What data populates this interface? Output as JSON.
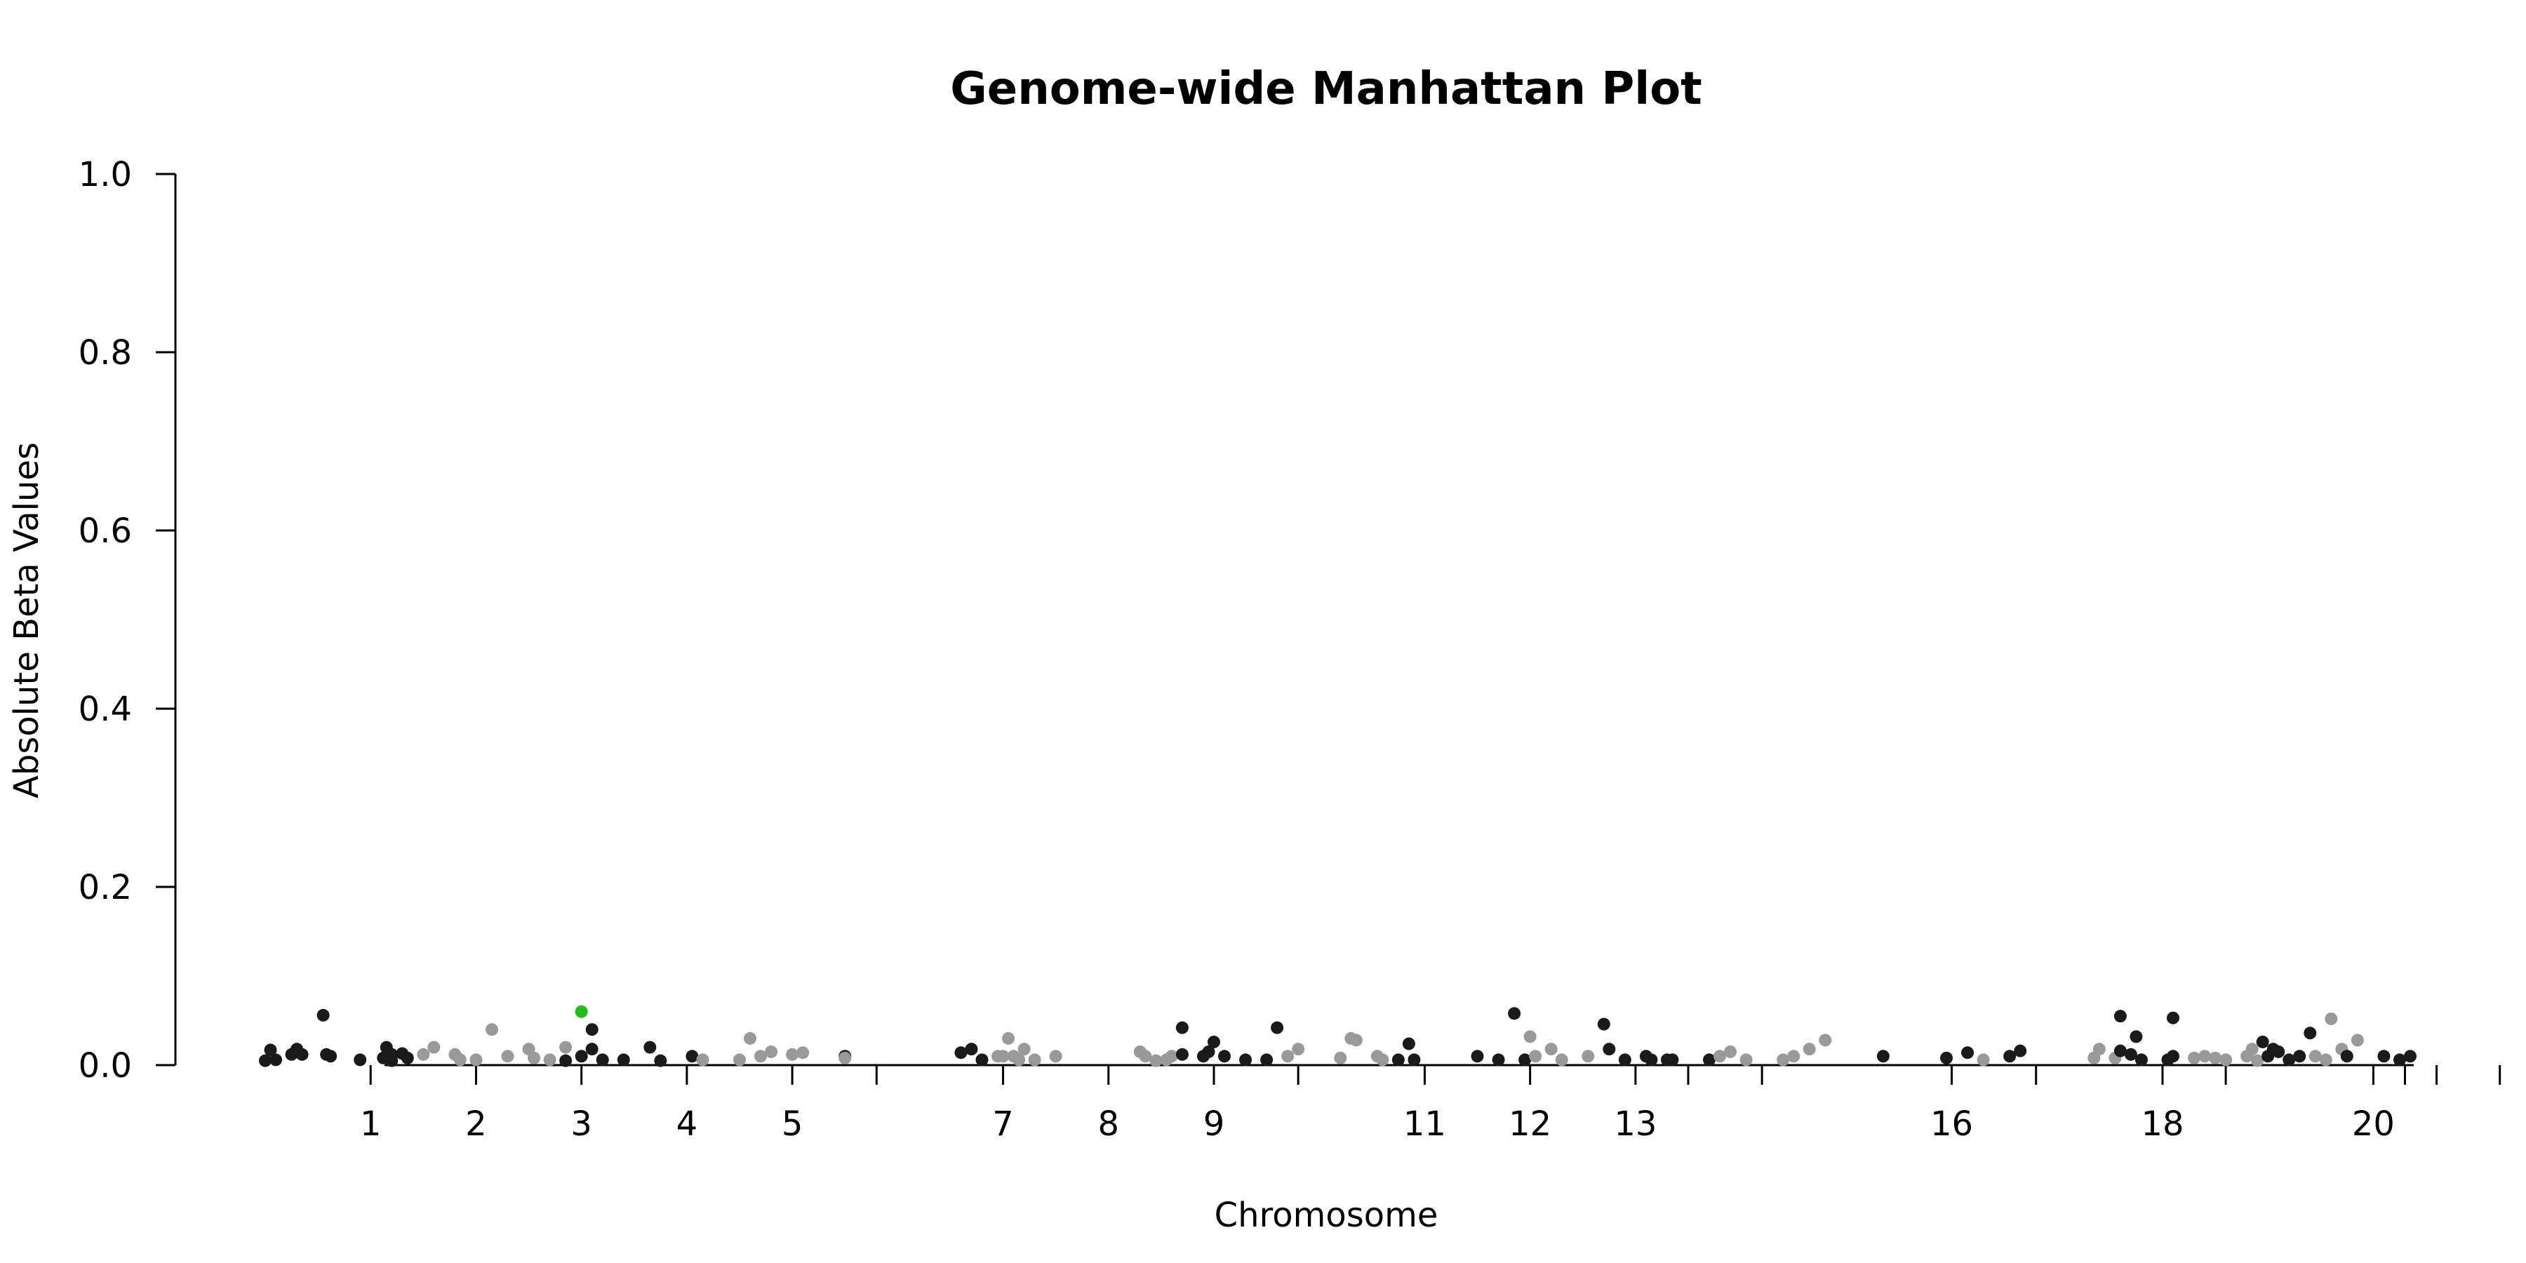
{
  "chart_data": {
    "type": "scatter",
    "title": "Genome-wide Manhattan Plot",
    "xlabel": "Chromosome",
    "ylabel": "Absolute Beta Values",
    "ylim": [
      0,
      1
    ],
    "yticks": [
      "0.0",
      "0.2",
      "0.4",
      "0.6",
      "0.8",
      "1.0"
    ],
    "xticks": [
      {
        "label": "1",
        "x": 1.0
      },
      {
        "label": "2",
        "x": 2.0
      },
      {
        "label": "3",
        "x": 3.0
      },
      {
        "label": "4",
        "x": 4.0
      },
      {
        "label": "5",
        "x": 5.0
      },
      {
        "label": "",
        "x": 5.8
      },
      {
        "label": "7",
        "x": 7.0
      },
      {
        "label": "8",
        "x": 8.0
      },
      {
        "label": "9",
        "x": 9.0
      },
      {
        "label": "",
        "x": 9.8
      },
      {
        "label": "11",
        "x": 11.0
      },
      {
        "label": "12",
        "x": 12.0
      },
      {
        "label": "13",
        "x": 13.0
      },
      {
        "label": "",
        "x": 13.5
      },
      {
        "label": "",
        "x": 14.2
      },
      {
        "label": "16",
        "x": 16.0
      },
      {
        "label": "",
        "x": 16.8
      },
      {
        "label": "18",
        "x": 18.0
      },
      {
        "label": "",
        "x": 18.6
      },
      {
        "label": "20",
        "x": 20.0
      },
      {
        "label": "",
        "x": 20.3
      },
      {
        "label": "",
        "x": 20.6
      },
      {
        "label": "",
        "x": 21.2
      }
    ],
    "colors": {
      "dark": "#1a1a1a",
      "gray": "#999999",
      "highlight": "#22bb22"
    },
    "points": [
      [
        0.0,
        0.005,
        "dark"
      ],
      [
        0.05,
        0.017,
        "dark"
      ],
      [
        0.1,
        0.006,
        "dark"
      ],
      [
        0.25,
        0.012,
        "dark"
      ],
      [
        0.3,
        0.018,
        "dark"
      ],
      [
        0.35,
        0.012,
        "dark"
      ],
      [
        0.55,
        0.056,
        "dark"
      ],
      [
        0.58,
        0.012,
        "dark"
      ],
      [
        0.62,
        0.01,
        "dark"
      ],
      [
        0.9,
        0.006,
        "dark"
      ],
      [
        1.15,
        0.02,
        "dark"
      ],
      [
        1.12,
        0.008,
        "dark"
      ],
      [
        1.2,
        0.012,
        "dark"
      ],
      [
        1.3,
        0.013,
        "dark"
      ],
      [
        1.35,
        0.008,
        "dark"
      ],
      [
        1.2,
        0.005,
        "dark"
      ],
      [
        1.5,
        0.012,
        "gray"
      ],
      [
        1.6,
        0.02,
        "gray"
      ],
      [
        1.8,
        0.012,
        "gray"
      ],
      [
        1.85,
        0.006,
        "gray"
      ],
      [
        2.0,
        0.006,
        "gray"
      ],
      [
        2.15,
        0.04,
        "gray"
      ],
      [
        2.3,
        0.01,
        "gray"
      ],
      [
        2.5,
        0.018,
        "gray"
      ],
      [
        2.55,
        0.008,
        "gray"
      ],
      [
        2.7,
        0.006,
        "gray"
      ],
      [
        2.85,
        0.02,
        "gray"
      ],
      [
        2.85,
        0.005,
        "dark"
      ],
      [
        3.0,
        0.01,
        "dark"
      ],
      [
        3.1,
        0.04,
        "dark"
      ],
      [
        3.1,
        0.018,
        "dark"
      ],
      [
        3.2,
        0.006,
        "dark"
      ],
      [
        3.4,
        0.006,
        "dark"
      ],
      [
        3.65,
        0.02,
        "dark"
      ],
      [
        3.75,
        0.005,
        "dark"
      ],
      [
        4.05,
        0.01,
        "dark"
      ],
      [
        4.15,
        0.006,
        "gray"
      ],
      [
        4.5,
        0.006,
        "gray"
      ],
      [
        4.6,
        0.03,
        "gray"
      ],
      [
        4.7,
        0.01,
        "gray"
      ],
      [
        4.8,
        0.015,
        "gray"
      ],
      [
        5.0,
        0.012,
        "gray"
      ],
      [
        5.1,
        0.014,
        "gray"
      ],
      [
        5.5,
        0.01,
        "dark"
      ],
      [
        5.5,
        0.008,
        "gray"
      ],
      [
        6.6,
        0.014,
        "dark"
      ],
      [
        6.7,
        0.018,
        "dark"
      ],
      [
        6.8,
        0.006,
        "dark"
      ],
      [
        6.95,
        0.01,
        "gray"
      ],
      [
        7.0,
        0.01,
        "gray"
      ],
      [
        7.05,
        0.03,
        "gray"
      ],
      [
        7.1,
        0.01,
        "gray"
      ],
      [
        7.2,
        0.018,
        "gray"
      ],
      [
        7.3,
        0.006,
        "gray"
      ],
      [
        7.5,
        0.01,
        "gray"
      ],
      [
        7.15,
        0.006,
        "gray"
      ],
      [
        8.3,
        0.015,
        "gray"
      ],
      [
        8.35,
        0.01,
        "gray"
      ],
      [
        8.45,
        0.005,
        "gray"
      ],
      [
        8.55,
        0.006,
        "gray"
      ],
      [
        8.6,
        0.01,
        "gray"
      ],
      [
        8.7,
        0.012,
        "dark"
      ],
      [
        8.7,
        0.042,
        "dark"
      ],
      [
        8.9,
        0.01,
        "dark"
      ],
      [
        8.95,
        0.015,
        "dark"
      ],
      [
        9.0,
        0.026,
        "dark"
      ],
      [
        9.1,
        0.01,
        "dark"
      ],
      [
        9.3,
        0.006,
        "dark"
      ],
      [
        9.5,
        0.006,
        "dark"
      ],
      [
        9.6,
        0.042,
        "dark"
      ],
      [
        9.7,
        0.01,
        "gray"
      ],
      [
        9.8,
        0.018,
        "gray"
      ],
      [
        10.2,
        0.008,
        "gray"
      ],
      [
        10.3,
        0.03,
        "gray"
      ],
      [
        10.35,
        0.028,
        "gray"
      ],
      [
        10.55,
        0.01,
        "gray"
      ],
      [
        10.6,
        0.006,
        "gray"
      ],
      [
        10.75,
        0.006,
        "dark"
      ],
      [
        10.85,
        0.024,
        "dark"
      ],
      [
        10.9,
        0.006,
        "dark"
      ],
      [
        11.5,
        0.01,
        "dark"
      ],
      [
        11.7,
        0.006,
        "dark"
      ],
      [
        11.85,
        0.058,
        "dark"
      ],
      [
        11.95,
        0.006,
        "dark"
      ],
      [
        12.0,
        0.032,
        "gray"
      ],
      [
        12.05,
        0.01,
        "gray"
      ],
      [
        12.2,
        0.018,
        "gray"
      ],
      [
        12.3,
        0.006,
        "gray"
      ],
      [
        12.55,
        0.01,
        "gray"
      ],
      [
        12.7,
        0.046,
        "dark"
      ],
      [
        12.75,
        0.018,
        "dark"
      ],
      [
        12.9,
        0.006,
        "dark"
      ],
      [
        13.1,
        0.01,
        "dark"
      ],
      [
        13.15,
        0.006,
        "dark"
      ],
      [
        13.3,
        0.006,
        "dark"
      ],
      [
        13.35,
        0.006,
        "dark"
      ],
      [
        13.7,
        0.006,
        "dark"
      ],
      [
        13.8,
        0.01,
        "gray"
      ],
      [
        13.9,
        0.015,
        "gray"
      ],
      [
        14.05,
        0.006,
        "gray"
      ],
      [
        14.4,
        0.006,
        "gray"
      ],
      [
        14.5,
        0.01,
        "gray"
      ],
      [
        14.65,
        0.018,
        "gray"
      ],
      [
        14.8,
        0.028,
        "gray"
      ],
      [
        15.35,
        0.01,
        "dark"
      ],
      [
        15.95,
        0.008,
        "dark"
      ],
      [
        16.15,
        0.014,
        "dark"
      ],
      [
        16.3,
        0.006,
        "gray"
      ],
      [
        16.55,
        0.01,
        "dark"
      ],
      [
        16.65,
        0.016,
        "dark"
      ],
      [
        17.35,
        0.008,
        "gray"
      ],
      [
        17.4,
        0.018,
        "gray"
      ],
      [
        17.55,
        0.008,
        "gray"
      ],
      [
        17.6,
        0.055,
        "dark"
      ],
      [
        17.6,
        0.016,
        "dark"
      ],
      [
        17.7,
        0.012,
        "dark"
      ],
      [
        17.75,
        0.032,
        "dark"
      ],
      [
        17.8,
        0.006,
        "dark"
      ],
      [
        18.1,
        0.053,
        "dark"
      ],
      [
        18.1,
        0.01,
        "dark"
      ],
      [
        18.05,
        0.006,
        "dark"
      ],
      [
        18.3,
        0.008,
        "gray"
      ],
      [
        18.4,
        0.01,
        "gray"
      ],
      [
        18.5,
        0.008,
        "gray"
      ],
      [
        18.6,
        0.006,
        "gray"
      ],
      [
        18.8,
        0.01,
        "gray"
      ],
      [
        18.85,
        0.018,
        "gray"
      ],
      [
        18.9,
        0.005,
        "gray"
      ],
      [
        18.95,
        0.026,
        "dark"
      ],
      [
        19.0,
        0.01,
        "dark"
      ],
      [
        19.05,
        0.018,
        "dark"
      ],
      [
        19.1,
        0.015,
        "dark"
      ],
      [
        19.2,
        0.006,
        "dark"
      ],
      [
        19.3,
        0.01,
        "dark"
      ],
      [
        19.4,
        0.036,
        "dark"
      ],
      [
        19.45,
        0.01,
        "gray"
      ],
      [
        19.55,
        0.006,
        "gray"
      ],
      [
        19.6,
        0.052,
        "gray"
      ],
      [
        19.7,
        0.018,
        "gray"
      ],
      [
        19.75,
        0.01,
        "dark"
      ],
      [
        19.85,
        0.028,
        "gray"
      ],
      [
        20.1,
        0.01,
        "dark"
      ],
      [
        20.25,
        0.006,
        "dark"
      ],
      [
        20.35,
        0.01,
        "dark"
      ],
      [
        3.0,
        0.06,
        "highlight"
      ]
    ]
  }
}
